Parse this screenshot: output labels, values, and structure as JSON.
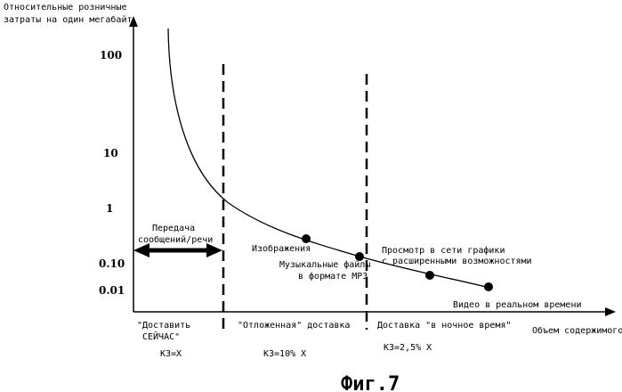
{
  "figure_label": "Фиг.7",
  "chart_data": {
    "type": "line",
    "ylabel": [
      "Относительные розничные",
      "затраты на один мегабайт"
    ],
    "xlabel": "Объем содержимого",
    "y_scale": "log",
    "grid": false,
    "yticks": [
      {
        "label": "100",
        "value": 100
      },
      {
        "label": "10",
        "value": 10
      },
      {
        "label": "1",
        "value": 1
      },
      {
        "label": "0.10",
        "value": 0.1
      },
      {
        "label": "0.01",
        "value": 0.01
      }
    ],
    "curve": {
      "x": [
        0.06,
        0.08,
        0.12,
        0.2,
        0.32,
        0.42,
        0.54,
        0.66,
        0.8,
        0.94
      ],
      "y": [
        120,
        18,
        5,
        1.3,
        0.6,
        0.28,
        0.14,
        0.08,
        0.04,
        0.02
      ]
    },
    "points": [
      {
        "x": 0.4,
        "y": 0.35,
        "label": "Изображения"
      },
      {
        "x": 0.5,
        "y": 0.15,
        "label": [
          "Музыкальные файлы",
          "в формате MP3"
        ]
      },
      {
        "x": 0.7,
        "y": 0.05,
        "label": [
          "Просмотр в сети графики",
          "с расширенными возможностями"
        ]
      },
      {
        "x": 0.88,
        "y": 0.02,
        "label": "Видео в реальном времени"
      }
    ],
    "arrow_label": [
      "Передача",
      "сообщений/речи"
    ],
    "regions": [
      {
        "name": "\"Доставить СЕЙЧАС\"",
        "name_lines": [
          "\"Доставить",
          "СЕЙЧАС\""
        ],
        "cost": "КЗ=X"
      },
      {
        "name": "\"Отложенная\" доставка",
        "cost": "КЗ=10% X"
      },
      {
        "name": "Доставка \"в ночное время\"",
        "cost": "КЗ=2,5% X"
      }
    ]
  }
}
